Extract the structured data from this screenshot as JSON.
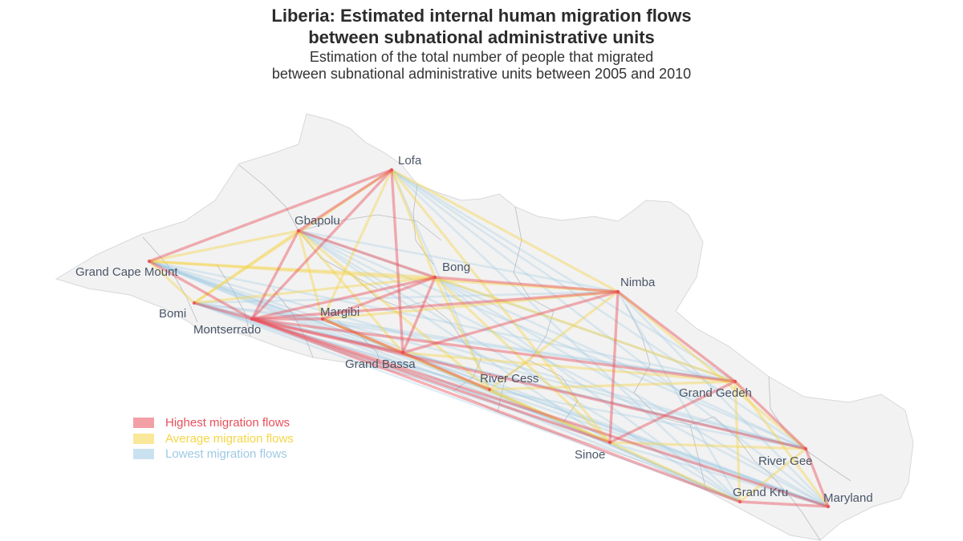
{
  "title": [
    "Liberia: Estimated internal human migration flows",
    "between subnational administrative units"
  ],
  "subtitle": [
    "Estimation of the total number of people that migrated",
    "between subnational administrative units between 2005 and 2010"
  ],
  "colors": {
    "high": "#e8505b",
    "average": "#f5d547",
    "low": "#9ec9e3",
    "land": "#f2f2f2",
    "border": "#b8bcc2",
    "label": "#4a5668"
  },
  "legend": [
    {
      "key": "high",
      "label": "Highest migration flows",
      "color": "#e8505b"
    },
    {
      "key": "average",
      "label": "Average migration flows",
      "color": "#f5d547"
    },
    {
      "key": "low",
      "label": "Lowest migration flows",
      "color": "#9ec9e3"
    }
  ],
  "counties": [
    {
      "id": "lofa",
      "label": "Lofa"
    },
    {
      "id": "gbapolu",
      "label": "Gbapolu"
    },
    {
      "id": "grand-cape-mount",
      "label": "Grand Cape Mount"
    },
    {
      "id": "bong",
      "label": "Bong"
    },
    {
      "id": "nimba",
      "label": "Nimba"
    },
    {
      "id": "bomi",
      "label": "Bomi"
    },
    {
      "id": "margibi",
      "label": "Margibi"
    },
    {
      "id": "montserrado",
      "label": "Montserrado"
    },
    {
      "id": "grand-bassa",
      "label": "Grand Bassa"
    },
    {
      "id": "river-cess",
      "label": "River Cess"
    },
    {
      "id": "grand-gedeh",
      "label": "Grand Gedeh"
    },
    {
      "id": "sinoe",
      "label": "Sinoe"
    },
    {
      "id": "river-gee",
      "label": "River Gee"
    },
    {
      "id": "grand-kru",
      "label": "Grand Kru"
    },
    {
      "id": "maryland",
      "label": "Maryland"
    }
  ],
  "flows": {
    "high": [
      [
        "montserrado",
        "lofa"
      ],
      [
        "montserrado",
        "bong"
      ],
      [
        "montserrado",
        "grand-cape-mount"
      ],
      [
        "montserrado",
        "grand-bassa"
      ],
      [
        "montserrado",
        "nimba"
      ],
      [
        "montserrado",
        "maryland"
      ],
      [
        "montserrado",
        "grand-kru"
      ],
      [
        "montserrado",
        "grand-gedeh"
      ],
      [
        "montserrado",
        "sinoe"
      ],
      [
        "montserrado",
        "margibi"
      ],
      [
        "montserrado",
        "gbapolu"
      ],
      [
        "montserrado",
        "bomi"
      ],
      [
        "montserrado",
        "river-gee"
      ],
      [
        "lofa",
        "gbapolu"
      ],
      [
        "lofa",
        "grand-bassa"
      ],
      [
        "lofa",
        "grand-cape-mount"
      ],
      [
        "gbapolu",
        "bong"
      ],
      [
        "bong",
        "nimba"
      ],
      [
        "bong",
        "grand-bassa"
      ],
      [
        "bong",
        "margibi"
      ],
      [
        "nimba",
        "grand-gedeh"
      ],
      [
        "nimba",
        "grand-bassa"
      ],
      [
        "nimba",
        "sinoe"
      ],
      [
        "grand-gedeh",
        "river-gee"
      ],
      [
        "grand-gedeh",
        "sinoe"
      ],
      [
        "river-gee",
        "maryland"
      ],
      [
        "grand-kru",
        "maryland"
      ],
      [
        "margibi",
        "grand-bassa"
      ],
      [
        "grand-bassa",
        "river-cess"
      ]
    ],
    "average": [
      [
        "lofa",
        "bong"
      ],
      [
        "lofa",
        "nimba"
      ],
      [
        "lofa",
        "bomi"
      ],
      [
        "lofa",
        "margibi"
      ],
      [
        "lofa",
        "sinoe"
      ],
      [
        "gbapolu",
        "grand-cape-mount"
      ],
      [
        "gbapolu",
        "bomi"
      ],
      [
        "gbapolu",
        "grand-bassa"
      ],
      [
        "gbapolu",
        "river-cess"
      ],
      [
        "gbapolu",
        "margibi"
      ],
      [
        "grand-cape-mount",
        "bong"
      ],
      [
        "grand-cape-mount",
        "bomi"
      ],
      [
        "grand-cape-mount",
        "nimba"
      ],
      [
        "bong",
        "river-cess"
      ],
      [
        "bong",
        "sinoe"
      ],
      [
        "bong",
        "grand-gedeh"
      ],
      [
        "bong",
        "bomi"
      ],
      [
        "nimba",
        "river-cess"
      ],
      [
        "nimba",
        "margibi"
      ],
      [
        "nimba",
        "river-gee"
      ],
      [
        "grand-gedeh",
        "grand-bassa"
      ],
      [
        "grand-gedeh",
        "maryland"
      ],
      [
        "grand-gedeh",
        "grand-kru"
      ],
      [
        "sinoe",
        "grand-kru"
      ],
      [
        "sinoe",
        "river-gee"
      ],
      [
        "sinoe",
        "river-cess"
      ],
      [
        "grand-kru",
        "river-gee"
      ],
      [
        "river-cess",
        "grand-gedeh"
      ],
      [
        "margibi",
        "river-cess"
      ],
      [
        "margibi",
        "sinoe"
      ]
    ],
    "low": [
      [
        "lofa",
        "river-cess"
      ],
      [
        "lofa",
        "grand-gedeh"
      ],
      [
        "lofa",
        "river-gee"
      ],
      [
        "lofa",
        "grand-kru"
      ],
      [
        "lofa",
        "maryland"
      ],
      [
        "gbapolu",
        "nimba"
      ],
      [
        "gbapolu",
        "sinoe"
      ],
      [
        "gbapolu",
        "grand-gedeh"
      ],
      [
        "gbapolu",
        "river-gee"
      ],
      [
        "gbapolu",
        "grand-kru"
      ],
      [
        "gbapolu",
        "maryland"
      ],
      [
        "grand-cape-mount",
        "margibi"
      ],
      [
        "grand-cape-mount",
        "grand-bassa"
      ],
      [
        "grand-cape-mount",
        "river-cess"
      ],
      [
        "grand-cape-mount",
        "sinoe"
      ],
      [
        "grand-cape-mount",
        "grand-gedeh"
      ],
      [
        "grand-cape-mount",
        "river-gee"
      ],
      [
        "grand-cape-mount",
        "grand-kru"
      ],
      [
        "grand-cape-mount",
        "maryland"
      ],
      [
        "bong",
        "river-gee"
      ],
      [
        "bong",
        "grand-kru"
      ],
      [
        "bong",
        "maryland"
      ],
      [
        "nimba",
        "bomi"
      ],
      [
        "nimba",
        "grand-kru"
      ],
      [
        "nimba",
        "maryland"
      ],
      [
        "bomi",
        "margibi"
      ],
      [
        "bomi",
        "grand-bassa"
      ],
      [
        "bomi",
        "river-cess"
      ],
      [
        "bomi",
        "sinoe"
      ],
      [
        "bomi",
        "grand-gedeh"
      ],
      [
        "bomi",
        "river-gee"
      ],
      [
        "bomi",
        "grand-kru"
      ],
      [
        "bomi",
        "maryland"
      ],
      [
        "margibi",
        "grand-gedeh"
      ],
      [
        "margibi",
        "river-gee"
      ],
      [
        "margibi",
        "grand-kru"
      ],
      [
        "margibi",
        "maryland"
      ],
      [
        "grand-bassa",
        "sinoe"
      ],
      [
        "grand-bassa",
        "river-gee"
      ],
      [
        "grand-bassa",
        "grand-kru"
      ],
      [
        "grand-bassa",
        "maryland"
      ],
      [
        "river-cess",
        "river-gee"
      ],
      [
        "river-cess",
        "grand-kru"
      ],
      [
        "river-cess",
        "maryland"
      ],
      [
        "sinoe",
        "maryland"
      ],
      [
        "montserrado",
        "river-cess"
      ]
    ]
  }
}
